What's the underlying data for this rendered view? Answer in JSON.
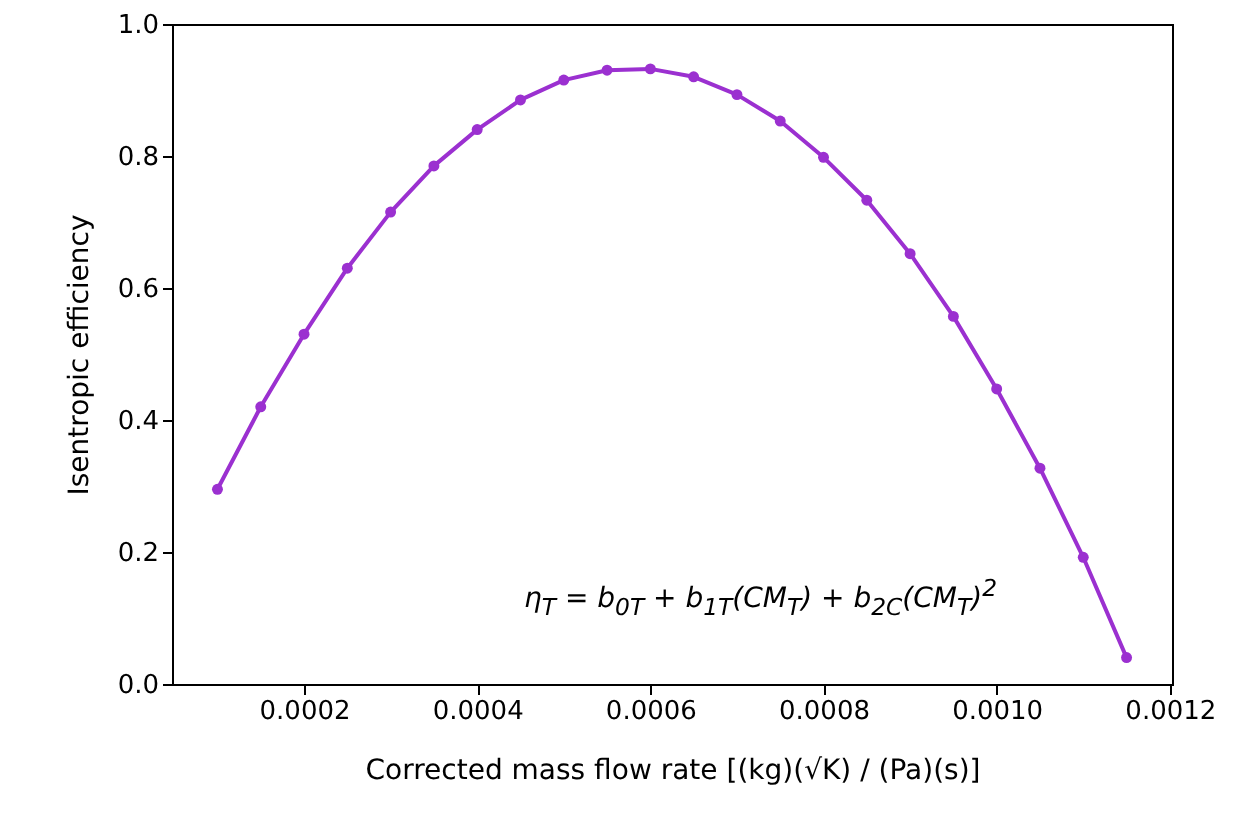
{
  "chart_data": {
    "type": "line",
    "xlabel": "Corrected mass flow rate [(kg)(√K) / (Pa)(s)]",
    "ylabel": "Isentropic efficiency",
    "x": [
      0.0001,
      0.00015,
      0.0002,
      0.00025,
      0.0003,
      0.00035,
      0.0004,
      0.00045,
      0.0005,
      0.00055,
      0.0006,
      0.00065,
      0.0007,
      0.00075,
      0.0008,
      0.00085,
      0.0009,
      0.00095,
      0.001,
      0.00105,
      0.0011,
      0.00115
    ],
    "series": [
      {
        "color": "#9b30d0",
        "values": [
          0.295,
          0.42,
          0.53,
          0.63,
          0.715,
          0.785,
          0.84,
          0.885,
          0.915,
          0.93,
          0.932,
          0.92,
          0.893,
          0.853,
          0.798,
          0.733,
          0.652,
          0.557,
          0.447,
          0.327,
          0.192,
          0.04
        ]
      }
    ],
    "xlim": [
      4.75e-05,
      0.0012025
    ],
    "xticks": [
      0.0002,
      0.0004,
      0.0006,
      0.0008,
      {
        "value": 0.001,
        "label": "0.0010"
      },
      {
        "value": 0.0012,
        "label": "0.0012"
      }
    ],
    "ylim": [
      0,
      1
    ],
    "yticks": [
      {
        "value": 0,
        "label": "0.0"
      },
      0.2,
      0.4,
      0.6,
      0.8,
      {
        "value": 1,
        "label": "1.0"
      }
    ],
    "marker": "circle",
    "line_style": "solid",
    "annotations": [
      "η$_{T}$ = b$_{0T}$ + b$_{1T}$(CM$_{T}$) + b$_{2C}$(CM$_{T}$)$^{2}$"
    ]
  }
}
